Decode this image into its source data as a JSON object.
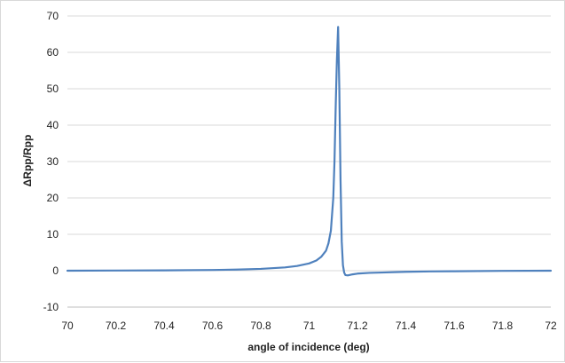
{
  "chart_data": {
    "type": "line",
    "title": "",
    "xlabel": "angle of incidence (deg)",
    "ylabel": "ΔRpp/Rpp",
    "xlim": [
      70,
      72
    ],
    "ylim": [
      -10,
      70
    ],
    "x_ticks": [
      "70",
      "70.2",
      "70.4",
      "70.6",
      "70.8",
      "71",
      "71.2",
      "71.4",
      "71.6",
      "71.8",
      "72"
    ],
    "y_ticks": [
      "-10",
      "0",
      "10",
      "20",
      "30",
      "40",
      "50",
      "60",
      "70"
    ],
    "grid": "horizontal",
    "legend": "none",
    "line_color": "#4f81bd",
    "grid_color": "#d9d9d9",
    "series": [
      {
        "x": [
          70,
          70.2,
          70.4,
          70.6,
          70.7,
          70.8,
          70.9,
          70.95,
          71.0,
          71.03,
          71.05,
          71.07,
          71.08,
          71.09,
          71.1,
          71.105,
          71.11,
          71.115,
          71.12,
          71.125,
          71.13,
          71.135,
          71.14,
          71.145,
          71.15,
          71.16,
          71.18,
          71.2,
          71.25,
          71.3,
          71.4,
          71.5,
          71.6,
          71.8,
          72
        ],
        "y": [
          0,
          0.05,
          0.1,
          0.2,
          0.3,
          0.5,
          0.9,
          1.3,
          2.0,
          2.8,
          3.8,
          5.5,
          7.5,
          11,
          20,
          30,
          45,
          58,
          67,
          50,
          25,
          8,
          1.5,
          -0.5,
          -1.2,
          -1.3,
          -1.0,
          -0.8,
          -0.6,
          -0.5,
          -0.3,
          -0.2,
          -0.15,
          -0.05,
          0
        ]
      }
    ]
  }
}
